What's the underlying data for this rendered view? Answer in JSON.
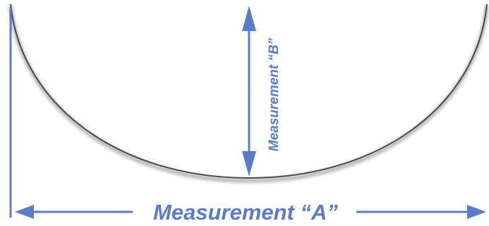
{
  "labels": {
    "measurement_a": "Measurement “A”",
    "measurement_b": "Measurement “B”"
  },
  "colors": {
    "accent": "#5b7bc9",
    "curve": "#4a4a4a",
    "shadow": "#b8b8b8",
    "background": "#ffffff"
  }
}
